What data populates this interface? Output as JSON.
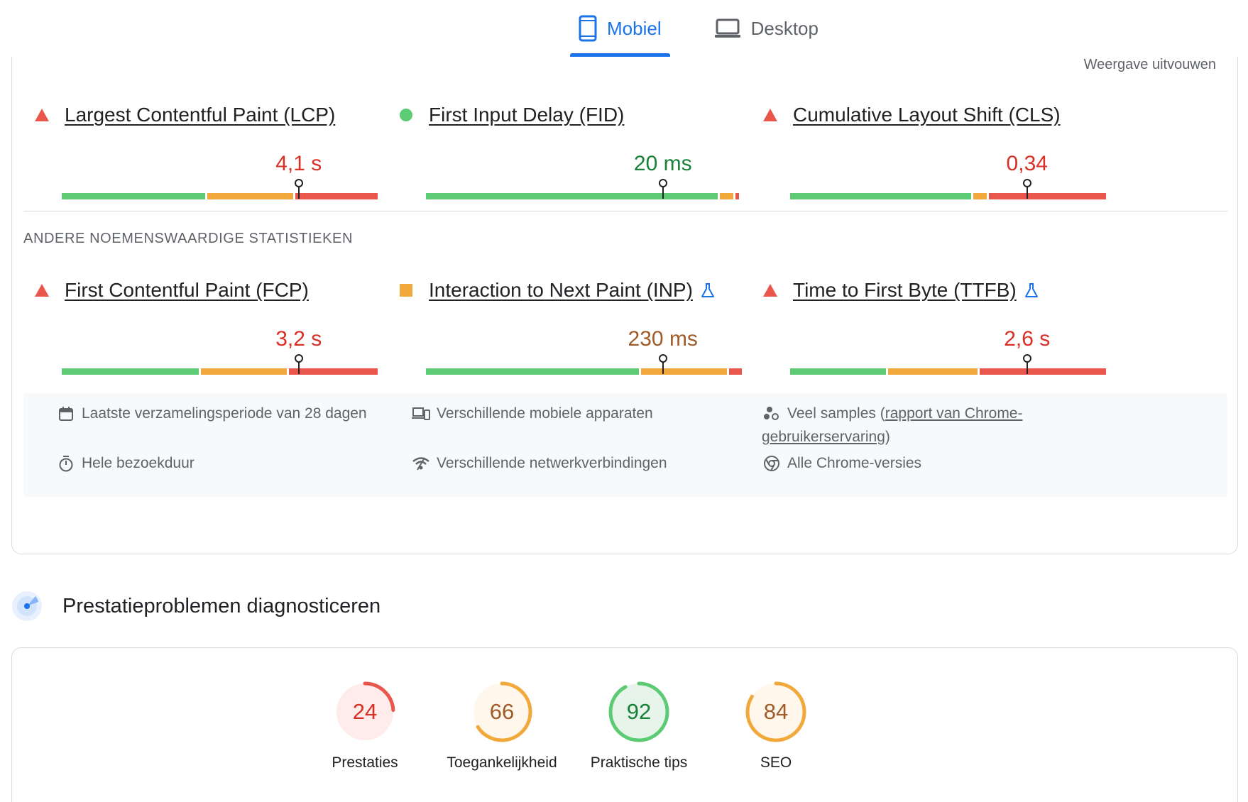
{
  "tabs": [
    {
      "label": "Mobiel",
      "icon": "smartphone-icon",
      "active": true
    },
    {
      "label": "Desktop",
      "icon": "laptop-icon",
      "active": false
    }
  ],
  "expand_label": "Weergave uitvouwen",
  "core_metrics": [
    {
      "name": "Largest Contentful Paint (LCP)",
      "value": "4,1 s",
      "status": "poor",
      "lab": false,
      "distribution": {
        "good": 0.46,
        "needs_improvement": 0.28,
        "poor": 0.26
      },
      "marker": 0.75
    },
    {
      "name": "First Input Delay (FID)",
      "value": "20 ms",
      "status": "good",
      "lab": false,
      "distribution": {
        "good": 0.93,
        "needs_improvement": 0.05,
        "poor": 0.01
      },
      "marker": 0.75
    },
    {
      "name": "Cumulative Layout Shift (CLS)",
      "value": "0,34",
      "status": "poor",
      "lab": false,
      "distribution": {
        "good": 0.58,
        "needs_improvement": 0.05,
        "poor": 0.37
      },
      "marker": 0.75
    }
  ],
  "other_section_title": "ANDERE NOEMENSWAARDIGE STATISTIEKEN",
  "other_metrics": [
    {
      "name": "First Contentful Paint (FCP)",
      "value": "3,2 s",
      "status": "poor",
      "lab": false,
      "distribution": {
        "good": 0.44,
        "needs_improvement": 0.28,
        "poor": 0.28
      },
      "marker": 0.75
    },
    {
      "name": "Interaction to Next Paint (INP)",
      "value": "230 ms",
      "status": "average",
      "lab": true,
      "distribution": {
        "good": 0.68,
        "needs_improvement": 0.28,
        "poor": 0.04
      },
      "marker": 0.75
    },
    {
      "name": "Time to First Byte (TTFB)",
      "value": "2,6 s",
      "status": "poor",
      "lab": true,
      "distribution": {
        "good": 0.31,
        "needs_improvement": 0.29,
        "poor": 0.4
      },
      "marker": 0.75
    }
  ],
  "info": {
    "period": "Laatste verzamelingsperiode van 28 dagen",
    "devices": "Verschillende mobiele apparaten",
    "samples_prefix": "Veel samples (",
    "samples_link": "rapport van Chrome-gebruikerservaring",
    "samples_suffix": ")",
    "duration": "Hele bezoekduur",
    "network": "Verschillende netwerkverbindingen",
    "chrome": "Alle Chrome-versies"
  },
  "diagnose_title": "Prestatieproblemen diagnosticeren",
  "scores": [
    {
      "value": "24",
      "label": "Prestaties",
      "level": "poor"
    },
    {
      "value": "66",
      "label": "Toegankelijkheid",
      "level": "average"
    },
    {
      "value": "92",
      "label": "Praktische tips",
      "level": "good"
    },
    {
      "value": "84",
      "label": "SEO",
      "level": "average"
    }
  ],
  "colors": {
    "good": "#0cce6b",
    "good_bar": "#5ccb73",
    "average": "#ffa400",
    "average_bar": "#f2a93b",
    "poor": "#ff4e42",
    "poor_bar": "#e9564b",
    "good_text": "#188038",
    "average_text": "#a15b28",
    "poor_text": "#d93025",
    "accent": "#1a73e8"
  }
}
